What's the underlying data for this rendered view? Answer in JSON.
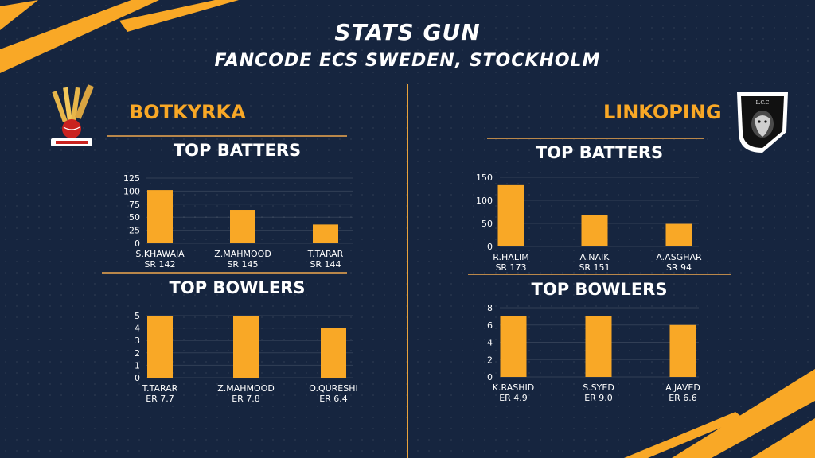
{
  "header": {
    "title": "STATS GUN",
    "subtitle": "FANCODE ECS SWEDEN, STOCKHOLM"
  },
  "colors": {
    "background": "#16253f",
    "accent": "#f9a826",
    "bar": "#f9a826"
  },
  "teams": {
    "left": {
      "name": "BOTKYRKA",
      "batters_title": "TOP BATTERS",
      "bowlers_title": "TOP BOWLERS"
    },
    "right": {
      "name": "LINKOPING",
      "batters_title": "TOP BATTERS",
      "bowlers_title": "TOP BOWLERS"
    }
  },
  "chart_data": [
    {
      "type": "bar",
      "title": "TOP BATTERS",
      "team": "BOTKYRKA",
      "categories": [
        "S.KHAWAJA",
        "Z.MAHMOOD",
        "T.TARAR"
      ],
      "sublabels": [
        "SR 142",
        "SR 145",
        "SR 144"
      ],
      "values": [
        102,
        64,
        36
      ],
      "yticks": [
        0,
        25,
        50,
        75,
        100,
        125
      ],
      "ylim": [
        0,
        125
      ]
    },
    {
      "type": "bar",
      "title": "TOP BOWLERS",
      "team": "BOTKYRKA",
      "categories": [
        "T.TARAR",
        "Z.MAHMOOD",
        "O.QURESHI"
      ],
      "sublabels": [
        "ER 7.7",
        "ER 7.8",
        "ER 6.4"
      ],
      "values": [
        5,
        5,
        4
      ],
      "yticks": [
        0,
        1,
        2,
        3,
        4,
        5
      ],
      "ylim": [
        0,
        5
      ]
    },
    {
      "type": "bar",
      "title": "TOP BATTERS",
      "team": "LINKOPING",
      "categories": [
        "R.HALIM",
        "A.NAIK",
        "A.ASGHAR"
      ],
      "sublabels": [
        "SR 173",
        "SR 151",
        "SR 94"
      ],
      "values": [
        133,
        68,
        49
      ],
      "yticks": [
        0,
        50,
        100,
        150
      ],
      "ylim": [
        0,
        150
      ]
    },
    {
      "type": "bar",
      "title": "TOP BOWLERS",
      "team": "LINKOPING",
      "categories": [
        "K.RASHID",
        "S.SYED",
        "A.JAVED"
      ],
      "sublabels": [
        "ER 4.9",
        "ER 9.0",
        "ER 6.6"
      ],
      "values": [
        7,
        7,
        6
      ],
      "yticks": [
        0,
        2,
        4,
        6,
        8
      ],
      "ylim": [
        0,
        8
      ]
    }
  ]
}
